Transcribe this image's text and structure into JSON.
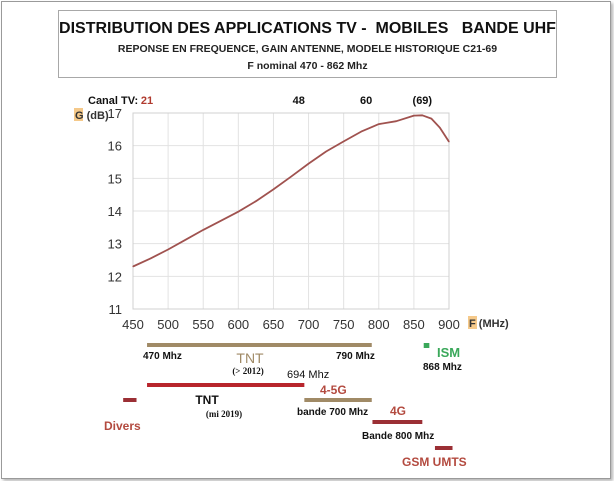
{
  "title": {
    "line1": "DISTRIBUTION DES APPLICATIONS TV -  MOBILES   BANDE UHF",
    "line2": "REPONSE EN FREQUENCE, GAIN ANTENNE, MODELE HISTORIQUE C21-69",
    "line3": "F nominal 470 - 862 Mhz"
  },
  "chart_data": {
    "type": "line",
    "x": [
      450,
      475,
      500,
      525,
      550,
      575,
      600,
      625,
      650,
      675,
      700,
      725,
      750,
      775,
      800,
      825,
      850,
      862,
      875,
      887,
      900
    ],
    "series": [
      {
        "values": [
          12.3,
          12.55,
          12.82,
          13.12,
          13.42,
          13.7,
          13.98,
          14.3,
          14.66,
          15.05,
          15.45,
          15.82,
          16.13,
          16.43,
          16.66,
          16.75,
          16.92,
          16.93,
          16.83,
          16.55,
          16.12
        ]
      }
    ],
    "xlim": [
      450,
      900
    ],
    "ylim": [
      11,
      17
    ],
    "xticks": [
      450,
      500,
      550,
      600,
      650,
      700,
      750,
      800,
      850,
      900
    ],
    "yticks": [
      11,
      12,
      13,
      14,
      15,
      16,
      17
    ],
    "ylabel": "G (dB)",
    "xlabel": "F (MHz)",
    "grid": true,
    "line_color": "#a0524f",
    "channels": {
      "label": "Canal TV:",
      "items": [
        {
          "text": "21",
          "freq": 470,
          "color": "#b03a2e"
        },
        {
          "text": "48",
          "freq": 686,
          "color": "#111111"
        },
        {
          "text": "60",
          "freq": 782,
          "color": "#111111"
        },
        {
          "text": "(69)",
          "freq": 862,
          "color": "#111111"
        }
      ]
    },
    "bands": [
      {
        "id": "tnt-pre2012",
        "start": 470,
        "end": 790,
        "row": 1,
        "color": "#a08a66"
      },
      {
        "id": "tnt-2019",
        "start": 470,
        "end": 694,
        "row": 2,
        "color": "#b8252c"
      },
      {
        "id": "4-5g-700",
        "start": 694,
        "end": 790,
        "row": 3,
        "color": "#a08a66"
      },
      {
        "id": "4g-800",
        "start": 791,
        "end": 862,
        "row": 4,
        "color": "#9b2f35"
      },
      {
        "id": "gsm-umts",
        "start": 880,
        "end": 905,
        "row": 5,
        "color": "#9b2f35"
      },
      {
        "id": "divers",
        "start": 436,
        "end": 455,
        "row": 3,
        "color": "#9b2f35"
      },
      {
        "id": "ism",
        "start": 864,
        "end": 872,
        "row": 1,
        "color": "#3aa85a"
      }
    ],
    "band_labels": [
      {
        "text": "470 Mhz",
        "color": "#111111",
        "bold": true,
        "size": 10
      },
      {
        "text": "TNT",
        "color": "#a08a66",
        "bold": false,
        "size": 14
      },
      {
        "text": "(> 2012)",
        "color": "#111111",
        "bold": true,
        "size": 9,
        "serif": true
      },
      {
        "text": "790 Mhz",
        "color": "#111111",
        "bold": true,
        "size": 10
      },
      {
        "text": "694 Mhz",
        "color": "#111111",
        "bold": false,
        "size": 11
      },
      {
        "text": "TNT",
        "color": "#111111",
        "bold": true,
        "size": 12
      },
      {
        "text": "(mi 2019)",
        "color": "#111111",
        "bold": true,
        "size": 9,
        "serif": true
      },
      {
        "text": "4-5G",
        "color": "#b34a3f",
        "bold": true,
        "size": 12
      },
      {
        "text": "bande 700 Mhz",
        "color": "#111111",
        "bold": true,
        "size": 10
      },
      {
        "text": "Divers",
        "color": "#b34a3f",
        "bold": true,
        "size": 12
      },
      {
        "text": "4G",
        "color": "#b34a3f",
        "bold": true,
        "size": 12
      },
      {
        "text": "Bande 800 Mhz",
        "color": "#111111",
        "bold": true,
        "size": 10
      },
      {
        "text": "ISM",
        "color": "#3aa85a",
        "bold": true,
        "size": 13
      },
      {
        "text": "868 Mhz",
        "color": "#111111",
        "bold": true,
        "size": 10
      },
      {
        "text": "GSM UMTS",
        "color": "#b34a3f",
        "bold": true,
        "size": 12
      }
    ]
  }
}
